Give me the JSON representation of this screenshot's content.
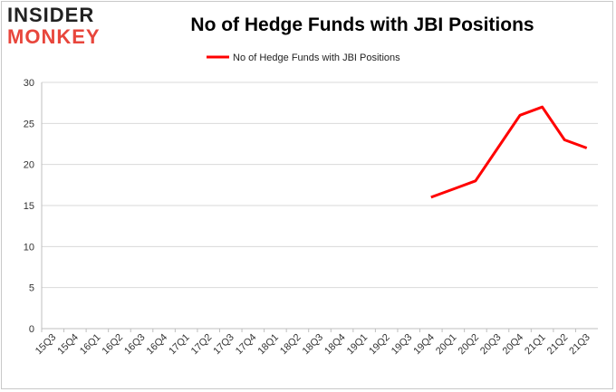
{
  "logo": {
    "line1": "INSIDER",
    "line2": "MONKEY"
  },
  "chart_data": {
    "type": "line",
    "title": "No of Hedge Funds with JBI Positions",
    "xlabel": "",
    "ylabel": "",
    "categories": [
      "15Q3",
      "15Q4",
      "16Q1",
      "16Q2",
      "16Q3",
      "16Q4",
      "17Q1",
      "17Q2",
      "17Q3",
      "17Q4",
      "18Q1",
      "18Q2",
      "18Q3",
      "18Q4",
      "19Q1",
      "19Q2",
      "19Q3",
      "19Q4",
      "20Q1",
      "20Q2",
      "20Q3",
      "20Q4",
      "21Q1",
      "21Q2",
      "21Q3"
    ],
    "series": [
      {
        "name": "No of Hedge Funds with JBI Positions",
        "color": "#ff0000",
        "values": [
          null,
          null,
          null,
          null,
          null,
          null,
          null,
          null,
          null,
          null,
          null,
          null,
          null,
          null,
          null,
          null,
          null,
          16,
          17,
          18,
          22,
          26,
          27,
          23,
          22
        ]
      }
    ],
    "ylim": [
      0,
      30
    ],
    "yticks": [
      0,
      5,
      10,
      15,
      20,
      25,
      30
    ],
    "grid": true,
    "legend": "top-center"
  }
}
